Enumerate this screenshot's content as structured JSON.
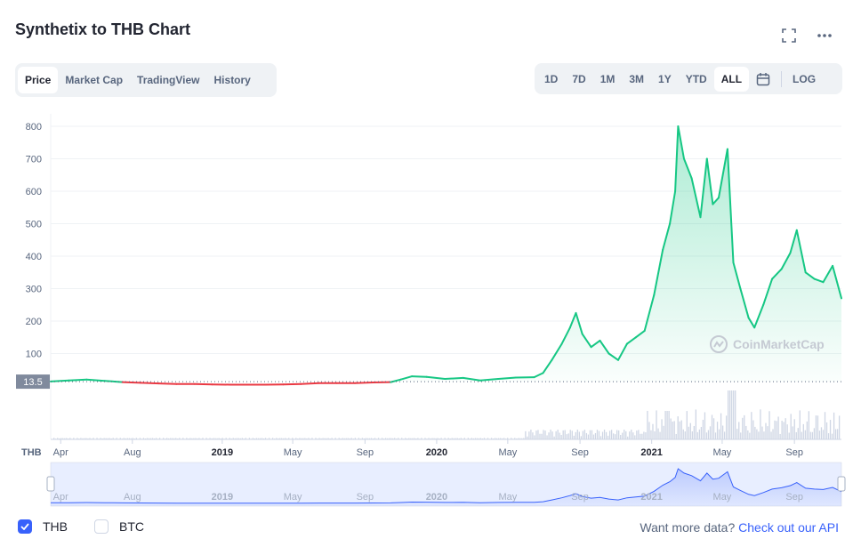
{
  "header": {
    "title": "Synthetix to THB Chart"
  },
  "tabs": [
    {
      "label": "Price",
      "active": true
    },
    {
      "label": "Market Cap",
      "active": false
    },
    {
      "label": "TradingView",
      "active": false
    },
    {
      "label": "History",
      "active": false
    }
  ],
  "ranges": [
    {
      "label": "1D",
      "active": false
    },
    {
      "label": "7D",
      "active": false
    },
    {
      "label": "1M",
      "active": false
    },
    {
      "label": "3M",
      "active": false
    },
    {
      "label": "1Y",
      "active": false
    },
    {
      "label": "YTD",
      "active": false
    },
    {
      "label": "ALL",
      "active": true
    }
  ],
  "log_label": "LOG",
  "watermark": "CoinMarketCap",
  "legend": {
    "thb_label": "THB",
    "btc_label": "BTC",
    "thb_checked": true,
    "btc_checked": false
  },
  "api": {
    "prefix": "Want more data?",
    "link": "Check out our API"
  },
  "colors": {
    "up": "#16c784",
    "down": "#ea3943",
    "accent": "#3861fb",
    "volume": "#cfd6e4"
  },
  "chart_data": {
    "type": "area",
    "title": "Synthetix to THB Chart",
    "currency_label": "THB",
    "ylim": [
      0,
      800
    ],
    "yticks": [
      100,
      200,
      300,
      400,
      500,
      600,
      700,
      800
    ],
    "baseline_label": "13.5",
    "baseline_value": 13.5,
    "grid": true,
    "xlim": [
      "2018-03-15",
      "2021-11-20"
    ],
    "xticks": [
      {
        "date": "2018-04-01",
        "label": "Apr",
        "bold": false
      },
      {
        "date": "2018-08-01",
        "label": "Aug",
        "bold": false
      },
      {
        "date": "2019-01-01",
        "label": "2019",
        "bold": true
      },
      {
        "date": "2019-05-01",
        "label": "May",
        "bold": false
      },
      {
        "date": "2019-09-01",
        "label": "Sep",
        "bold": false
      },
      {
        "date": "2020-01-01",
        "label": "2020",
        "bold": true
      },
      {
        "date": "2020-05-01",
        "label": "May",
        "bold": false
      },
      {
        "date": "2020-09-01",
        "label": "Sep",
        "bold": false
      },
      {
        "date": "2021-01-01",
        "label": "2021",
        "bold": true
      },
      {
        "date": "2021-05-01",
        "label": "May",
        "bold": false
      },
      {
        "date": "2021-09-01",
        "label": "Sep",
        "bold": false
      }
    ],
    "series": [
      {
        "points": [
          [
            "2018-03-15",
            14
          ],
          [
            "2018-04-15",
            17
          ],
          [
            "2018-05-15",
            20
          ],
          [
            "2018-06-15",
            16
          ],
          [
            "2018-07-15",
            12
          ],
          [
            "2018-08-15",
            10
          ],
          [
            "2018-09-15",
            8
          ],
          [
            "2018-10-15",
            6
          ],
          [
            "2018-11-15",
            6
          ],
          [
            "2018-12-15",
            5
          ],
          [
            "2019-01-15",
            4
          ],
          [
            "2019-02-15",
            4
          ],
          [
            "2019-03-15",
            4
          ],
          [
            "2019-04-15",
            5
          ],
          [
            "2019-05-15",
            6
          ],
          [
            "2019-06-15",
            9
          ],
          [
            "2019-07-15",
            9
          ],
          [
            "2019-08-15",
            9
          ],
          [
            "2019-09-15",
            11
          ],
          [
            "2019-10-15",
            12
          ],
          [
            "2019-11-01",
            20
          ],
          [
            "2019-11-20",
            30
          ],
          [
            "2019-12-15",
            28
          ],
          [
            "2020-01-15",
            22
          ],
          [
            "2020-02-15",
            25
          ],
          [
            "2020-03-15",
            17
          ],
          [
            "2020-04-15",
            22
          ],
          [
            "2020-05-15",
            26
          ],
          [
            "2020-06-15",
            27
          ],
          [
            "2020-06-30",
            40
          ],
          [
            "2020-07-15",
            80
          ],
          [
            "2020-08-01",
            130
          ],
          [
            "2020-08-15",
            180
          ],
          [
            "2020-08-25",
            225
          ],
          [
            "2020-09-05",
            160
          ],
          [
            "2020-09-20",
            120
          ],
          [
            "2020-10-05",
            140
          ],
          [
            "2020-10-20",
            100
          ],
          [
            "2020-11-05",
            80
          ],
          [
            "2020-11-20",
            130
          ],
          [
            "2020-12-05",
            150
          ],
          [
            "2020-12-20",
            170
          ],
          [
            "2021-01-05",
            280
          ],
          [
            "2021-01-20",
            420
          ],
          [
            "2021-02-01",
            500
          ],
          [
            "2021-02-10",
            600
          ],
          [
            "2021-02-15",
            800
          ],
          [
            "2021-02-25",
            700
          ],
          [
            "2021-03-10",
            640
          ],
          [
            "2021-03-25",
            520
          ],
          [
            "2021-04-05",
            700
          ],
          [
            "2021-04-15",
            560
          ],
          [
            "2021-04-25",
            580
          ],
          [
            "2021-05-10",
            730
          ],
          [
            "2021-05-20",
            380
          ],
          [
            "2021-06-01",
            300
          ],
          [
            "2021-06-15",
            210
          ],
          [
            "2021-06-25",
            180
          ],
          [
            "2021-07-10",
            250
          ],
          [
            "2021-07-25",
            330
          ],
          [
            "2021-08-10",
            360
          ],
          [
            "2021-08-25",
            410
          ],
          [
            "2021-09-05",
            480
          ],
          [
            "2021-09-20",
            350
          ],
          [
            "2021-10-05",
            330
          ],
          [
            "2021-10-20",
            320
          ],
          [
            "2021-11-05",
            370
          ],
          [
            "2021-11-20",
            270
          ]
        ]
      }
    ]
  }
}
